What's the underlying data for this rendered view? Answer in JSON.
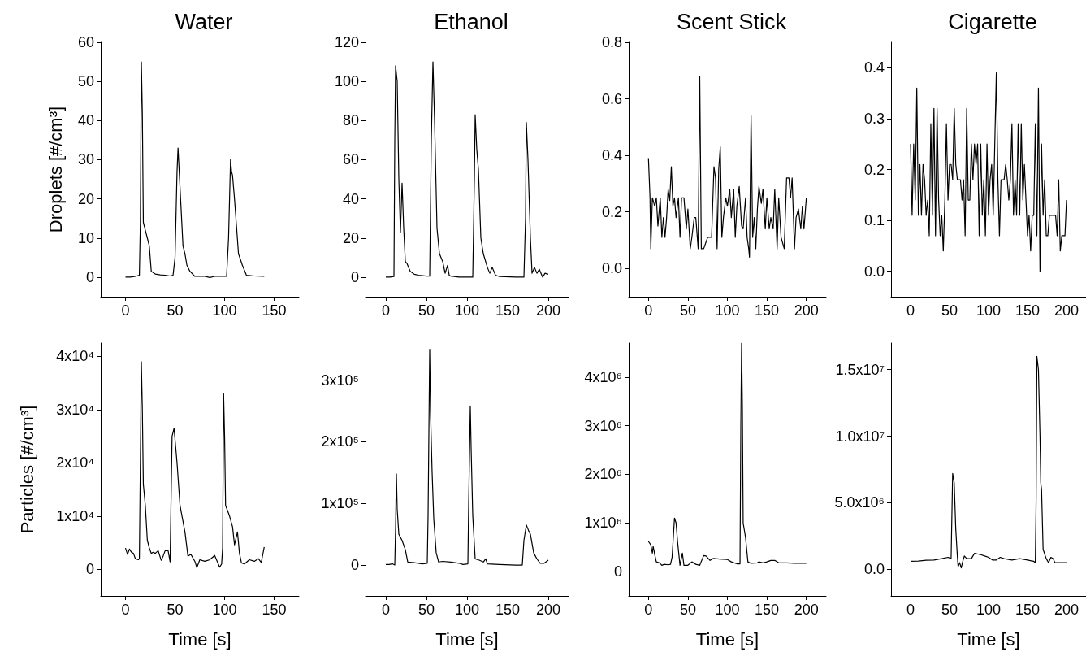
{
  "chart_data": [
    {
      "type": "line",
      "title": "Water",
      "ylabel": "Droplets [#/cm³]",
      "color": "#000000",
      "xlim": [
        -25,
        175
      ],
      "xticks": [
        0,
        50,
        100,
        150
      ],
      "ylim": [
        -5,
        60
      ],
      "yticks": [
        0,
        10,
        20,
        30,
        40,
        50,
        60
      ],
      "x": [
        0,
        5,
        10,
        14,
        15,
        16,
        17,
        18,
        20,
        22,
        24,
        26,
        30,
        35,
        40,
        45,
        48,
        50,
        52,
        53,
        54,
        56,
        58,
        60,
        62,
        65,
        70,
        80,
        85,
        90,
        100,
        102,
        104,
        106,
        107,
        108,
        110,
        114,
        118,
        122,
        130,
        140
      ],
      "values": [
        0,
        0,
        0.2,
        0.5,
        14,
        55,
        42,
        14,
        12,
        10,
        8,
        1.5,
        0.8,
        0.6,
        0.5,
        0.3,
        0.5,
        5,
        27,
        33,
        28,
        18,
        8,
        6,
        3,
        1.5,
        0.2,
        0.2,
        -0.1,
        0.2,
        0.2,
        0.2,
        10,
        30,
        27,
        26,
        20,
        6,
        3,
        0.5,
        0.3,
        0.2
      ]
    },
    {
      "type": "line",
      "title": "Ethanol",
      "color": "#000000",
      "xlim": [
        -25,
        225
      ],
      "xticks": [
        0,
        50,
        100,
        150,
        200
      ],
      "ylim": [
        -10,
        120
      ],
      "yticks": [
        0,
        20,
        40,
        60,
        80,
        100,
        120
      ],
      "x": [
        0,
        5,
        10,
        11,
        12,
        14,
        16,
        18,
        20,
        22,
        24,
        26,
        30,
        35,
        40,
        50,
        54,
        56,
        58,
        60,
        63,
        66,
        70,
        73,
        76,
        78,
        80,
        90,
        100,
        107,
        109,
        110,
        112,
        114,
        117,
        120,
        125,
        128,
        131,
        135,
        140,
        160,
        170,
        172,
        173,
        175,
        178,
        180,
        183,
        186,
        189,
        193,
        196,
        200
      ],
      "values": [
        0,
        0,
        0.3,
        70,
        108,
        100,
        50,
        23,
        48,
        25,
        8,
        7,
        3,
        1.5,
        1,
        0.5,
        0.5,
        70,
        110,
        80,
        25,
        12,
        8,
        2,
        6,
        1,
        0.5,
        0,
        0,
        0,
        50,
        83,
        65,
        55,
        20,
        12,
        5,
        2,
        5,
        1,
        0.3,
        0,
        0,
        30,
        79,
        60,
        20,
        2,
        5,
        2,
        4,
        0,
        2,
        1.5
      ]
    },
    {
      "type": "line",
      "title": "Scent Stick",
      "color": "#000000",
      "xlim": [
        -25,
        225
      ],
      "xticks": [
        0,
        50,
        100,
        150,
        200
      ],
      "ylim": [
        -0.1,
        0.8
      ],
      "yticks": [
        {
          "value": 0,
          "label": "0.0"
        },
        0.2,
        0.4,
        0.6,
        0.8
      ],
      "x": [
        0,
        2,
        3,
        5,
        8,
        10,
        12,
        15,
        17,
        19,
        21,
        23,
        25,
        27,
        29,
        31,
        33,
        35,
        38,
        40,
        42,
        45,
        48,
        50,
        53,
        55,
        58,
        60,
        63,
        65,
        67,
        70,
        75,
        80,
        83,
        85,
        87,
        89,
        91,
        93,
        95,
        98,
        100,
        103,
        105,
        108,
        110,
        112,
        115,
        118,
        120,
        123,
        125,
        127,
        128,
        130,
        132,
        134,
        136,
        138,
        140,
        143,
        145,
        148,
        150,
        153,
        155,
        158,
        160,
        163,
        165,
        168,
        172,
        175,
        178,
        180,
        182,
        185,
        187,
        190,
        193,
        195,
        197,
        200
      ],
      "values": [
        0.39,
        0.25,
        0.07,
        0.25,
        0.22,
        0.25,
        0.15,
        0.25,
        0.11,
        0.18,
        0.11,
        0.18,
        0.28,
        0.24,
        0.36,
        0.22,
        0.25,
        0.18,
        0.25,
        0.11,
        0.25,
        0.25,
        0.14,
        0.21,
        0.07,
        0.11,
        0.18,
        0.18,
        0.07,
        0.68,
        0.07,
        0.07,
        0.11,
        0.11,
        0.36,
        0.32,
        0.07,
        0.35,
        0.43,
        0.11,
        0.18,
        0.25,
        0.22,
        0.28,
        0.18,
        0.28,
        0.11,
        0.22,
        0.29,
        0.15,
        0.14,
        0.25,
        0.11,
        0.07,
        0.04,
        0.54,
        0.11,
        0.18,
        0.07,
        0.21,
        0.29,
        0.23,
        0.28,
        0.14,
        0.25,
        0.14,
        0.18,
        0.14,
        0.28,
        0.07,
        0.25,
        0.11,
        0.07,
        0.32,
        0.32,
        0.25,
        0.32,
        0.07,
        0.18,
        0.21,
        0.14,
        0.22,
        0.14,
        0.25
      ]
    },
    {
      "type": "line",
      "title": "Cigarette",
      "color": "#000000",
      "xlim": [
        -25,
        225
      ],
      "xticks": [
        0,
        50,
        100,
        150,
        200
      ],
      "ylim": [
        -0.05,
        0.45
      ],
      "yticks": [
        {
          "value": 0,
          "label": "0.0"
        },
        0.1,
        0.2,
        0.3,
        0.4
      ],
      "x": [
        0,
        2,
        4,
        6,
        8,
        10,
        12,
        14,
        16,
        18,
        20,
        22,
        24,
        26,
        28,
        30,
        32,
        34,
        36,
        38,
        40,
        42,
        44,
        46,
        48,
        50,
        52,
        54,
        56,
        58,
        60,
        62,
        64,
        66,
        68,
        70,
        72,
        74,
        76,
        78,
        80,
        82,
        84,
        86,
        88,
        90,
        92,
        94,
        96,
        98,
        100,
        102,
        104,
        106,
        108,
        110,
        112,
        114,
        116,
        118,
        120,
        122,
        124,
        126,
        128,
        130,
        132,
        134,
        136,
        138,
        140,
        142,
        144,
        146,
        148,
        150,
        152,
        154,
        156,
        158,
        160,
        162,
        164,
        166,
        168,
        170,
        172,
        174,
        176,
        178,
        180,
        182,
        184,
        186,
        188,
        190,
        192,
        194,
        196,
        198,
        200
      ],
      "values": [
        0.25,
        0.11,
        0.25,
        0.14,
        0.36,
        0.11,
        0.21,
        0.11,
        0.21,
        0.18,
        0.11,
        0.14,
        0.07,
        0.29,
        0.11,
        0.32,
        0.07,
        0.32,
        0.14,
        0.07,
        0.11,
        0.04,
        0.14,
        0.29,
        0.14,
        0.21,
        0.21,
        0.18,
        0.32,
        0.21,
        0.18,
        0.18,
        0.18,
        0.14,
        0.18,
        0.07,
        0.32,
        0.14,
        0.14,
        0.25,
        0.18,
        0.25,
        0.21,
        0.25,
        0.07,
        0.25,
        0.11,
        0.18,
        0.07,
        0.25,
        0.11,
        0.18,
        0.21,
        0.11,
        0.25,
        0.39,
        0.18,
        0.07,
        0.18,
        0.18,
        0.18,
        0.21,
        0.18,
        0.14,
        0.18,
        0.29,
        0.11,
        0.18,
        0.11,
        0.29,
        0.11,
        0.29,
        0.14,
        0.21,
        0.14,
        0.07,
        0.11,
        0.04,
        0.11,
        0.11,
        0.29,
        0.07,
        0.36,
        0.0,
        0.25,
        0.11,
        0.18,
        0.07,
        0.07,
        0.11,
        0.11,
        0.11,
        0.11,
        0.11,
        0.07,
        0.18,
        0.04,
        0.07,
        0.07,
        0.07,
        0.14
      ]
    },
    {
      "type": "line",
      "ylabel": "Particles [#/cm³]",
      "xlabel": "Time [s]",
      "color": "#000000",
      "xlim": [
        -25,
        175
      ],
      "xticks": [
        0,
        50,
        100,
        150
      ],
      "ylim": [
        -5000,
        42500
      ],
      "yticks": [
        0,
        {
          "value": 10000,
          "label": "1x10⁴"
        },
        {
          "value": 20000,
          "label": "2x10⁴"
        },
        {
          "value": 30000,
          "label": "3x10⁴"
        },
        {
          "value": 40000,
          "label": "4x10⁴"
        }
      ],
      "x": [
        0,
        2,
        4,
        6,
        8,
        10,
        13,
        14,
        15,
        16,
        17,
        18,
        20,
        22,
        24,
        26,
        28,
        30,
        33,
        36,
        38,
        40,
        43,
        45,
        47,
        49,
        52,
        55,
        60,
        63,
        66,
        70,
        72,
        75,
        80,
        85,
        90,
        95,
        97,
        98,
        99,
        100,
        101,
        105,
        108,
        110,
        113,
        115,
        117,
        120,
        125,
        130,
        134,
        137,
        140
      ],
      "values": [
        4000,
        2800,
        3800,
        3200,
        3000,
        2000,
        1800,
        2000,
        20000,
        39000,
        30000,
        16000,
        12000,
        5500,
        4000,
        3000,
        3200,
        3000,
        3500,
        1700,
        2500,
        3500,
        3500,
        1400,
        25000,
        26500,
        20000,
        12000,
        7000,
        2500,
        2800,
        1500,
        300,
        1800,
        1500,
        1800,
        2600,
        400,
        1000,
        4000,
        33000,
        25000,
        12000,
        10000,
        8000,
        4600,
        7000,
        3000,
        1200,
        1000,
        1800,
        1500,
        2000,
        1300,
        4200
      ]
    },
    {
      "type": "line",
      "xlabel": "Time [s]",
      "color": "#000000",
      "xlim": [
        -25,
        225
      ],
      "xticks": [
        0,
        50,
        100,
        150,
        200
      ],
      "ylim": [
        -50000,
        360000
      ],
      "yticks": [
        0,
        {
          "value": 100000,
          "label": "1x10⁵"
        },
        {
          "value": 200000,
          "label": "2x10⁵"
        },
        {
          "value": 300000,
          "label": "3x10⁵"
        }
      ],
      "x": [
        0,
        4,
        8,
        11,
        12,
        13,
        14,
        16,
        20,
        24,
        27,
        35,
        45,
        51,
        52,
        54,
        55,
        57,
        59,
        62,
        65,
        70,
        80,
        90,
        95,
        101,
        102,
        104,
        105,
        107,
        110,
        115,
        120,
        123,
        125,
        140,
        160,
        168,
        170,
        173,
        176,
        178,
        182,
        186,
        190,
        195,
        200
      ],
      "values": [
        1000,
        1000,
        2000,
        0,
        60000,
        148000,
        90000,
        50000,
        40000,
        25000,
        5000,
        4000,
        2000,
        3000,
        80000,
        350000,
        250000,
        150000,
        75000,
        20000,
        5000,
        6000,
        5000,
        3000,
        1000,
        2000,
        100000,
        258000,
        190000,
        80000,
        10000,
        8000,
        5000,
        10000,
        2000,
        1000,
        0,
        0,
        40000,
        65000,
        55000,
        50000,
        20000,
        10000,
        3000,
        3000,
        8000
      ]
    },
    {
      "type": "line",
      "xlabel": "Time [s]",
      "color": "#000000",
      "xlim": [
        -25,
        225
      ],
      "xticks": [
        0,
        50,
        100,
        150,
        200
      ],
      "ylim": [
        -500000,
        4700000
      ],
      "yticks": [
        0,
        {
          "value": 1000000,
          "label": "1x10⁶"
        },
        {
          "value": 2000000,
          "label": "2x10⁶"
        },
        {
          "value": 3000000,
          "label": "3x10⁶"
        },
        {
          "value": 4000000,
          "label": "4x10⁶"
        }
      ],
      "x": [
        0,
        3,
        5,
        6,
        8,
        10,
        14,
        17,
        20,
        25,
        28,
        30,
        33,
        35,
        37,
        40,
        43,
        45,
        50,
        55,
        60,
        65,
        70,
        73,
        78,
        82,
        90,
        100,
        105,
        112,
        116,
        117,
        118,
        119,
        120,
        123,
        126,
        130,
        138,
        140,
        145,
        150,
        155,
        160,
        165,
        175,
        185,
        200
      ],
      "values": [
        620000,
        550000,
        380000,
        520000,
        350000,
        200000,
        180000,
        130000,
        150000,
        140000,
        150000,
        300000,
        1100000,
        1000000,
        600000,
        130000,
        380000,
        130000,
        130000,
        200000,
        150000,
        130000,
        330000,
        320000,
        230000,
        270000,
        260000,
        250000,
        200000,
        160000,
        160000,
        3000000,
        4700000,
        3400000,
        1000000,
        700000,
        200000,
        170000,
        180000,
        200000,
        180000,
        200000,
        230000,
        230000,
        180000,
        180000,
        170000,
        170000
      ]
    },
    {
      "type": "line",
      "xlabel": "Time [s]",
      "color": "#000000",
      "xlim": [
        -25,
        225
      ],
      "xticks": [
        0,
        50,
        100,
        150,
        200
      ],
      "ylim": [
        -2000000,
        17000000
      ],
      "yticks": [
        {
          "value": 0,
          "label": "0.0"
        },
        {
          "value": 5000000,
          "label": "5.0x10⁶"
        },
        {
          "value": 10000000,
          "label": "1.0x10⁷"
        },
        {
          "value": 15000000,
          "label": "1.5x10⁷"
        }
      ],
      "x": [
        0,
        10,
        20,
        30,
        40,
        48,
        52,
        54,
        56,
        58,
        60,
        61,
        63,
        65,
        67,
        69,
        72,
        78,
        82,
        90,
        95,
        100,
        105,
        110,
        115,
        120,
        130,
        140,
        150,
        158,
        160,
        161,
        162,
        164,
        166,
        167,
        168,
        170,
        174,
        177,
        180,
        183,
        185,
        200
      ],
      "values": [
        600000,
        620000,
        680000,
        700000,
        800000,
        900000,
        800000,
        7200000,
        6500000,
        3000000,
        1000000,
        200000,
        500000,
        100000,
        600000,
        1000000,
        800000,
        800000,
        1200000,
        1100000,
        1000000,
        900000,
        700000,
        700000,
        900000,
        800000,
        700000,
        800000,
        700000,
        600000,
        500000,
        5000000,
        16000000,
        15000000,
        10000000,
        6500000,
        6000000,
        1500000,
        800000,
        500000,
        900000,
        800000,
        500000,
        500000
      ]
    }
  ]
}
